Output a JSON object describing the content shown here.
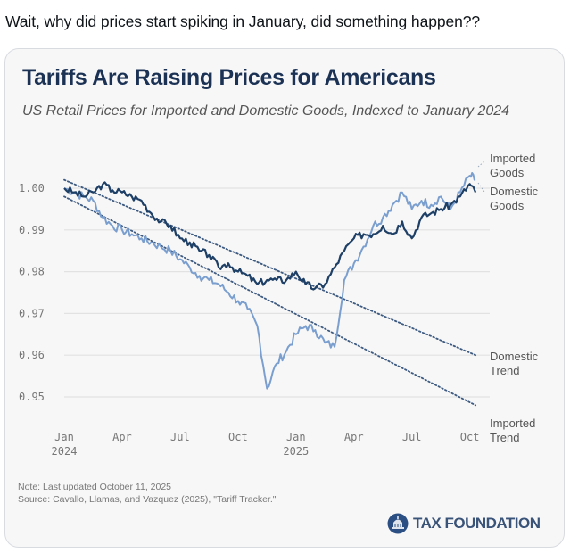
{
  "post": {
    "text": "Wait, why did prices start spiking in January, did something happen??"
  },
  "card": {
    "title": "Tariffs Are Raising Prices for Americans",
    "subtitle": "US Retail Prices for Imported and Domestic Goods, Indexed to January 2024",
    "note": "Note: Last updated October 11, 2025",
    "source": "Source: Cavallo, Llamas, and Vazquez (2025), \"Tariff Tracker.\"",
    "brand": "TAX FOUNDATION",
    "brand_icon": "capitol-dome-logo-icon"
  },
  "colors": {
    "domestic": "#1e3f66",
    "imported": "#7a9fcf",
    "trend": "#3d5a80",
    "grid": "#e2e2e2",
    "axis_text": "#777777",
    "label_text": "#555555",
    "title": "#1b3255"
  },
  "chart_data": {
    "type": "line",
    "title": "Tariffs Are Raising Prices for Americans",
    "subtitle": "US Retail Prices for Imported and Domestic Goods, Indexed to January 2024",
    "xlabel": "",
    "ylabel": "",
    "ylim": [
      0.945,
      1.012
    ],
    "xlim_months": [
      0,
      21.5
    ],
    "grid": true,
    "legend": "direct-labels-right",
    "yticks": [
      1.0,
      0.99,
      0.98,
      0.97,
      0.96,
      0.95
    ],
    "ytick_labels": [
      "1.00",
      "0.99",
      "0.98",
      "0.97",
      "0.96",
      "0.95"
    ],
    "xticks": [
      {
        "month": 0,
        "label": "Jan",
        "sub": "2024"
      },
      {
        "month": 3,
        "label": "Apr",
        "sub": ""
      },
      {
        "month": 6,
        "label": "Jul",
        "sub": ""
      },
      {
        "month": 9,
        "label": "Oct",
        "sub": ""
      },
      {
        "month": 12,
        "label": "Jan",
        "sub": "2025"
      },
      {
        "month": 15,
        "label": "Apr",
        "sub": ""
      },
      {
        "month": 18,
        "label": "Jul",
        "sub": ""
      },
      {
        "month": 21,
        "label": "Oct",
        "sub": ""
      }
    ],
    "x_months": [
      0,
      0.5,
      1,
      1.5,
      2,
      2.5,
      3,
      3.5,
      4,
      4.5,
      5,
      5.5,
      6,
      6.5,
      7,
      7.5,
      8,
      8.5,
      9,
      9.5,
      10,
      10.5,
      11,
      11.5,
      12,
      12.5,
      13,
      13.5,
      14,
      14.5,
      15,
      15.5,
      16,
      16.5,
      17,
      17.5,
      18,
      18.5,
      19,
      19.5,
      20,
      20.5,
      21,
      21.3
    ],
    "series": [
      {
        "name": "Domestic Goods",
        "label_lines": [
          "Domestic",
          "Goods"
        ],
        "values": [
          1.0,
          0.999,
          0.998,
          0.999,
          1.001,
          0.9995,
          0.999,
          0.998,
          0.997,
          0.994,
          0.992,
          0.991,
          0.988,
          0.987,
          0.985,
          0.984,
          0.981,
          0.982,
          0.98,
          0.979,
          0.977,
          0.978,
          0.978,
          0.978,
          0.98,
          0.977,
          0.976,
          0.977,
          0.981,
          0.985,
          0.988,
          0.989,
          0.989,
          0.991,
          0.989,
          0.992,
          0.988,
          0.993,
          0.994,
          0.995,
          0.996,
          0.998,
          1.001,
          0.999
        ]
      },
      {
        "name": "Imported Goods",
        "label_lines": [
          "Imported",
          "Goods"
        ],
        "values": [
          1.0,
          0.999,
          0.998,
          0.997,
          0.993,
          0.991,
          0.99,
          0.989,
          0.988,
          0.987,
          0.986,
          0.985,
          0.983,
          0.981,
          0.979,
          0.978,
          0.977,
          0.975,
          0.973,
          0.971,
          0.967,
          0.952,
          0.958,
          0.961,
          0.965,
          0.967,
          0.966,
          0.963,
          0.962,
          0.978,
          0.982,
          0.986,
          0.991,
          0.993,
          0.996,
          0.999,
          0.995,
          0.997,
          0.996,
          0.998,
          0.995,
          0.999,
          1.003,
          1.002
        ]
      },
      {
        "name": "Domestic Trend",
        "label_lines": [
          "Domestic",
          "Trend"
        ],
        "style": "dotted",
        "x_months": [
          0,
          21.3
        ],
        "values": [
          1.002,
          0.96
        ]
      },
      {
        "name": "Imported Trend",
        "label_lines": [
          "Imported",
          "Trend"
        ],
        "style": "dotted",
        "x_months": [
          0,
          21.3
        ],
        "values": [
          0.998,
          0.948
        ]
      }
    ]
  }
}
